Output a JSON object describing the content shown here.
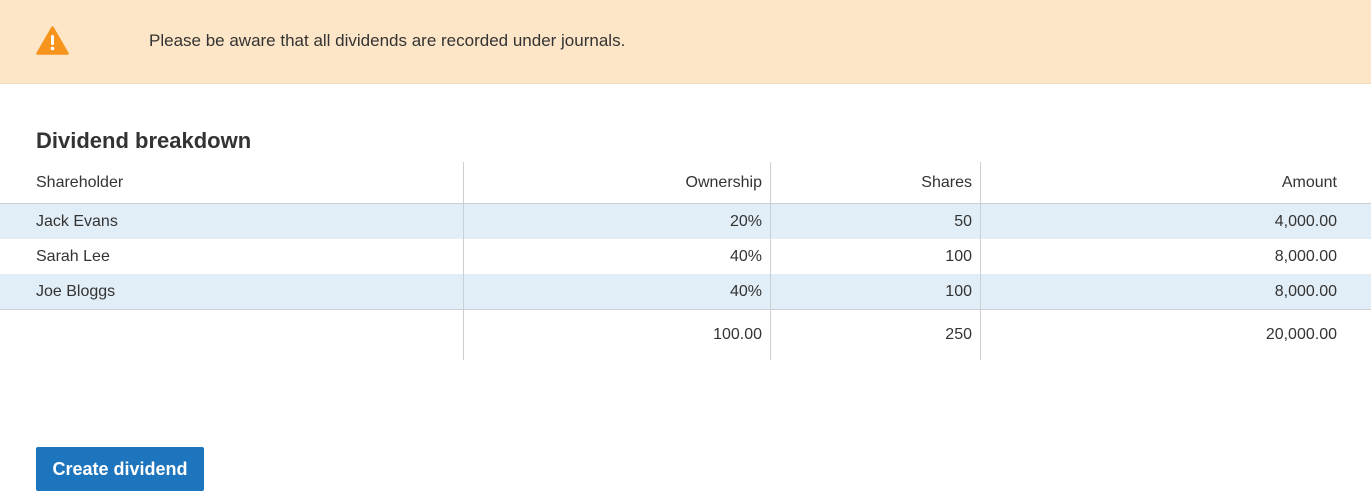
{
  "banner": {
    "icon": "warning-triangle-icon",
    "message": "Please be aware that all dividends are recorded under journals.",
    "background": "#fde6c7",
    "icon_color": "#f7941d"
  },
  "breakdown": {
    "title": "Dividend breakdown",
    "columns": {
      "shareholder": "Shareholder",
      "ownership": "Ownership",
      "shares": "Shares",
      "amount": "Amount"
    },
    "rows": [
      {
        "shareholder": "Jack Evans",
        "ownership": "20%",
        "shares": "50",
        "amount": "4,000.00"
      },
      {
        "shareholder": "Sarah Lee",
        "ownership": "40%",
        "shares": "100",
        "amount": "8,000.00"
      },
      {
        "shareholder": "Joe Bloggs",
        "ownership": "40%",
        "shares": "100",
        "amount": "8,000.00"
      }
    ],
    "totals": {
      "ownership": "100.00",
      "shares": "250",
      "amount": "20,000.00"
    }
  },
  "actions": {
    "create_label": "Create dividend",
    "primary_color": "#1d75bd"
  }
}
